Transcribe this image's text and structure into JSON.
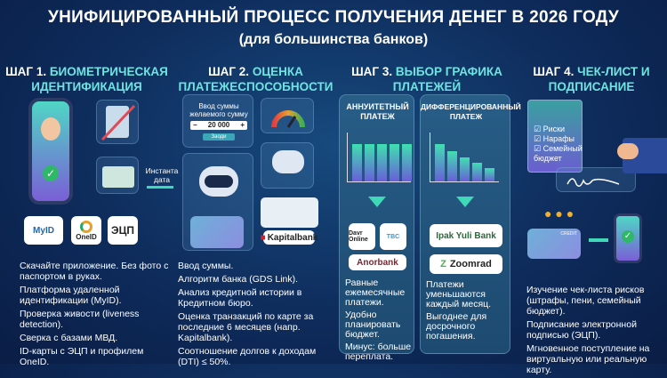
{
  "header": {
    "title": "УНИФИЦИРОВАННЫЙ ПРОЦЕСС ПОЛУЧЕНИЯ ДЕНЕГ В 2026 ГОДУ",
    "subtitle": "(для большинства банков)"
  },
  "steps": [
    {
      "num": "ШАГ 1.",
      "title": "БИОМЕТРИЧЕСКАЯ ИДЕНТИФИКАЦИЯ",
      "logos": [
        "MyID",
        "OneID",
        "ЭЦП"
      ],
      "arrow_label": "Инстанта дата",
      "points": [
        "Скачайте приложение. Без фото с паспортом в руках.",
        "Платформа удаленной идентификации (MyID).",
        "Проверка живости (liveness detection).",
        "Сверка с базами МВД.",
        "ID-карты с ЭЦП и профилем OneID."
      ]
    },
    {
      "num": "ШАГ 2.",
      "title": "ОЦЕНКА ПЛАТЕЖЕСПОСОБНОСТИ",
      "form_label": "Ввод суммы желаемого сумму",
      "amount": "20 000",
      "minus": "−",
      "plus": "+",
      "submit": "Заоди",
      "bank": "Kapitalbank",
      "points": [
        "Ввод суммы.",
        "Алгоритм банка (GDS Link).",
        "Анализ кредитной истории в Кредитном бюро.",
        "Оценка транзакций по карте за последние 6 месяцев (напр. Kapitalbank).",
        "Соотношение долгов к доходам (DTI) ≤ 50%."
      ]
    },
    {
      "num": "ШАГ 3.",
      "title": "ВЫБОР ГРАФИКА ПЛАТЕЖЕЙ",
      "options": [
        {
          "title": "АННУИТЕТНЫЙ ПЛАТЕЖ",
          "bars": [
            1,
            1,
            1,
            1,
            1
          ],
          "banks": [
            "Davr Online",
            "TBC",
            "Anorbank"
          ],
          "points": [
            "Равные ежемесячные платежи.",
            "Удобно планировать бюджет.",
            "Минус: больше переплата."
          ]
        },
        {
          "title": "ДИФФЕРЕНЦИРОВАННЫЙ ПЛАТЕЖ",
          "bars": [
            1,
            0.82,
            0.64,
            0.5,
            0.36
          ],
          "banks": [
            "Ipak Yuli Bank",
            "Zoomrad"
          ],
          "points": [
            "Платежи уменьшаются каждый месяц.",
            "Выгоднее для досрочного погашения."
          ]
        }
      ]
    },
    {
      "num": "ШАГ 4.",
      "title": "ЧЕК-ЛИСТ И ПОДПИСАНИЕ",
      "checklist": [
        "Риски",
        "Нарафы",
        "Семейный бюджет"
      ],
      "card_label": "CREDIT",
      "points": [
        "Изучение чек-листа рисков (штрафы, пени, семейный бюджет).",
        "Подписание электронной подписью (ЭЦП).",
        "Мгновенное поступление на виртуальную или реальную карту."
      ]
    }
  ],
  "colors": {
    "accent": "#6fe3e0",
    "arrow": "#3fd9b8",
    "bg": "#0e2c5c"
  }
}
